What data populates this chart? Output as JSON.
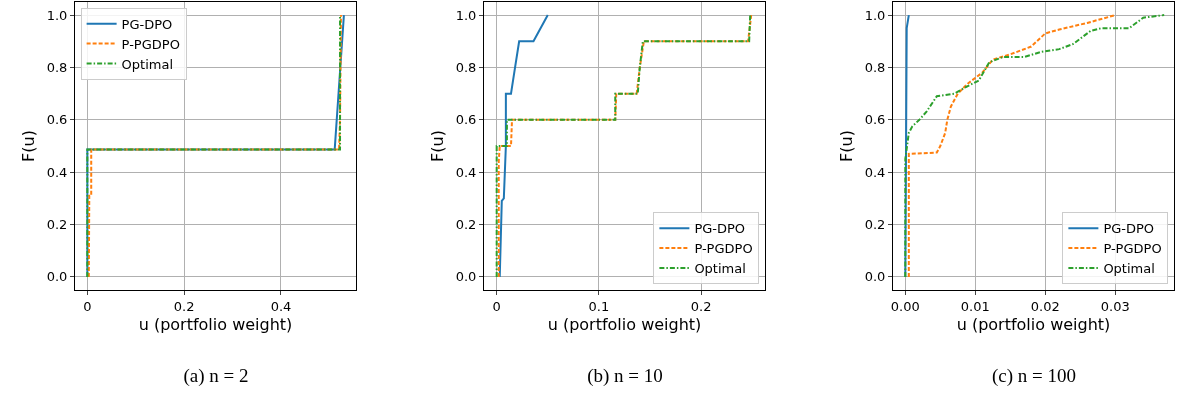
{
  "chart_data": [
    {
      "type": "line",
      "title": "(a) n = 2",
      "xlabel": "u (portfolio weight)",
      "ylabel": "F(u)",
      "xlim": [
        -0.0255,
        0.555
      ],
      "ylim": [
        -0.05,
        1.05
      ],
      "xticks": [
        0.0,
        {
          "value": 0.2,
          "label": "0.2"
        },
        {
          "value": 0.4,
          "label": "0.4"
        }
      ],
      "yticks": [
        {
          "value": 0,
          "label": "0.0"
        },
        {
          "value": 0.2,
          "label": "0.2"
        },
        {
          "value": 0.4,
          "label": "0.4"
        },
        {
          "value": 0.6,
          "label": "0.6"
        },
        {
          "value": 0.8,
          "label": "0.8"
        },
        {
          "value": 1,
          "label": "1.0"
        }
      ],
      "grid": true,
      "legend": "top left",
      "series": [
        {
          "name": "PG-DPO",
          "color": "#1f77b4",
          "line_style": "solid",
          "x": [
            0,
            0,
            0.511,
            0.53
          ],
          "values": [
            0,
            0.487,
            0.487,
            1.0
          ]
        },
        {
          "name": "P-PGDPO",
          "color": "#ff7f0e",
          "line_style": "dashed",
          "x": [
            0.003,
            0.004,
            0.008,
            0.008,
            0.52,
            0.522,
            0.524
          ],
          "values": [
            0,
            0.31,
            0.31,
            0.487,
            0.487,
            0.6,
            1.0
          ]
        },
        {
          "name": "Optimal",
          "color": "#2ca02c",
          "line_style": "dashdot",
          "x": [
            0,
            0,
            0.522,
            0.522
          ],
          "values": [
            0,
            0.487,
            0.487,
            1.0
          ]
        }
      ]
    },
    {
      "type": "line",
      "title": "(b) n = 10",
      "xlabel": "u (portfolio weight)",
      "ylabel": "F(u)",
      "xlim": [
        -0.0124,
        0.2625
      ],
      "ylim": [
        -0.05,
        1.05
      ],
      "xticks": [
        0.0,
        {
          "value": 0.1,
          "label": "0.1"
        },
        {
          "value": 0.2,
          "label": "0.2"
        }
      ],
      "yticks": [
        {
          "value": 0,
          "label": "0.0"
        },
        {
          "value": 0.2,
          "label": "0.2"
        },
        {
          "value": 0.4,
          "label": "0.4"
        },
        {
          "value": 0.6,
          "label": "0.6"
        },
        {
          "value": 0.8,
          "label": "0.8"
        },
        {
          "value": 1,
          "label": "1.0"
        }
      ],
      "grid": true,
      "legend": "bottom right",
      "series": [
        {
          "name": "PG-DPO",
          "color": "#1f77b4",
          "line_style": "solid",
          "x": [
            0.003,
            0.005,
            0.007,
            0.009,
            0.009,
            0.014,
            0.018,
            0.022,
            0.036,
            0.05
          ],
          "values": [
            0,
            0.29,
            0.3,
            0.5,
            0.7,
            0.7,
            0.8,
            0.9,
            0.9,
            1.0
          ]
        },
        {
          "name": "P-PGDPO",
          "color": "#ff7f0e",
          "line_style": "dashed",
          "x": [
            0.002,
            0.002,
            0.003,
            0.014,
            0.015,
            0.116,
            0.117,
            0.137,
            0.14,
            0.144,
            0.246,
            0.249
          ],
          "values": [
            0,
            0.44,
            0.5,
            0.5,
            0.6,
            0.6,
            0.7,
            0.7,
            0.8,
            0.9,
            0.9,
            1.0
          ]
        },
        {
          "name": "Optimal",
          "color": "#2ca02c",
          "line_style": "dashdot",
          "x": [
            0,
            0,
            0.01,
            0.01,
            0.116,
            0.116,
            0.138,
            0.14,
            0.143,
            0.247,
            0.248
          ],
          "values": [
            0,
            0.5,
            0.5,
            0.6,
            0.6,
            0.7,
            0.7,
            0.8,
            0.9,
            0.9,
            1.0
          ]
        }
      ]
    },
    {
      "type": "line",
      "title": "(c) n = 100",
      "xlabel": "u (portfolio weight)",
      "ylabel": "F(u)",
      "xlim": [
        -0.00176,
        0.0384
      ],
      "ylim": [
        -0.05,
        1.05
      ],
      "xticks": [
        {
          "value": 0,
          "label": "0.00"
        },
        0.01,
        0.02,
        0.03
      ],
      "yticks": [
        {
          "value": 0,
          "label": "0.0"
        },
        {
          "value": 0.2,
          "label": "0.2"
        },
        {
          "value": 0.4,
          "label": "0.4"
        },
        {
          "value": 0.6,
          "label": "0.6"
        },
        {
          "value": 0.8,
          "label": "0.8"
        },
        {
          "value": 1,
          "label": "1.0"
        }
      ],
      "grid": true,
      "legend": "bottom right",
      "series": [
        {
          "name": "PG-DPO",
          "color": "#1f77b4",
          "line_style": "solid",
          "x": [
            0,
            0.0002,
            0.0005
          ],
          "values": [
            0,
            0.95,
            1.0
          ]
        },
        {
          "name": "P-PGDPO",
          "color": "#ff7f0e",
          "line_style": "dashed",
          "x": [
            0.0005,
            0.0005,
            0.0045,
            0.005,
            0.0057,
            0.006,
            0.0065,
            0.0075,
            0.009,
            0.011,
            0.0125,
            0.015,
            0.018,
            0.02,
            0.022,
            0.026,
            0.03
          ],
          "values": [
            0,
            0.47,
            0.475,
            0.5,
            0.55,
            0.6,
            0.65,
            0.7,
            0.74,
            0.78,
            0.83,
            0.85,
            0.88,
            0.93,
            0.945,
            0.97,
            1.0
          ]
        },
        {
          "name": "Optimal",
          "color": "#2ca02c",
          "line_style": "dashdot",
          "x": [
            0,
            0,
            0.0005,
            0.001,
            0.002,
            0.003,
            0.0045,
            0.007,
            0.009,
            0.0105,
            0.012,
            0.014,
            0.017,
            0.0195,
            0.022,
            0.024,
            0.0265,
            0.028,
            0.032,
            0.034,
            0.037
          ],
          "values": [
            0,
            0.45,
            0.55,
            0.575,
            0.6,
            0.63,
            0.69,
            0.7,
            0.73,
            0.75,
            0.82,
            0.84,
            0.84,
            0.86,
            0.87,
            0.89,
            0.94,
            0.95,
            0.95,
            0.99,
            1.0
          ]
        }
      ]
    }
  ]
}
